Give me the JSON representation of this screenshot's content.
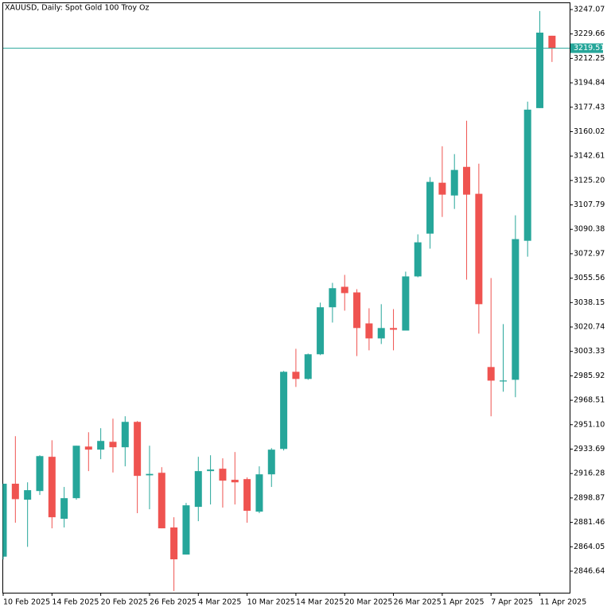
{
  "chart_data": {
    "type": "candlestick",
    "title": "XAUUSD, Daily:  Spot Gold 100 Troy Oz",
    "categories": [
      "10 Feb 2025",
      null,
      null,
      null,
      "14 Feb 2025",
      null,
      null,
      null,
      "20 Feb 2025",
      null,
      null,
      null,
      "26 Feb 2025",
      null,
      null,
      null,
      "4 Mar 2025",
      null,
      null,
      null,
      "10 Mar 2025",
      null,
      null,
      null,
      "14 Mar 2025",
      null,
      null,
      null,
      "20 Mar 2025",
      null,
      null,
      null,
      "26 Mar 2025",
      null,
      null,
      null,
      "1 Apr 2025",
      null,
      null,
      null,
      "7 Apr 2025",
      null,
      null,
      null,
      "11 Apr 2025",
      null
    ],
    "open": [
      2857,
      2909,
      2897.6,
      2903.8,
      2928.2,
      2884,
      2898.7,
      2935.5,
      2933.3,
      2938.9,
      2935,
      2953.1,
      2915,
      2916.8,
      2877.8,
      2858.5,
      2892.5,
      2918,
      2919.7,
      2911.8,
      2912.3,
      2889.1,
      2915.7,
      2933.8,
      2988.8,
      2983.7,
      3001.3,
      3034.8,
      3049.4,
      3045.4,
      3023.3,
      3012.6,
      3020,
      3018.2,
      3056.8,
      3087.3,
      3123.6,
      3114.5,
      3134.9,
      3115.7,
      2992.2,
      2981.9,
      2983.1,
      3082.2,
      3176.8,
      3228.4
    ],
    "high": [
      2909,
      2942.9,
      2910,
      2929.3,
      2940,
      2906.7,
      2936.1,
      2945.7,
      2948.6,
      2955.4,
      2957.1,
      2953.7,
      2936.1,
      2920.8,
      2885.1,
      2895.3,
      2928.2,
      2929.3,
      2927.1,
      2931.6,
      2913.5,
      2921.4,
      2934.4,
      2989.4,
      3005.2,
      3001.8,
      3038.1,
      3052.2,
      3057.9,
      3047.7,
      3034.1,
      3037,
      3033.5,
      3060.2,
      3086.8,
      3127.6,
      3149.6,
      3144,
      3167.8,
      3137.2,
      3055.6,
      3022.8,
      3100.4,
      3181.4,
      3246,
      3228.4
    ],
    "low": [
      2855,
      2881.2,
      2864,
      2901,
      2877.2,
      2877.8,
      2897.6,
      2918,
      2926.5,
      2917,
      2921.4,
      2888,
      2890.8,
      2877.2,
      2832.5,
      2858.5,
      2882.3,
      2894.2,
      2892,
      2894.2,
      2881.2,
      2888,
      2906.7,
      2932.7,
      2978,
      2983.1,
      3000.7,
      3023.9,
      3032.4,
      3000,
      3004.1,
      3008.6,
      3004.1,
      3018.2,
      3056.2,
      3076.6,
      3099.2,
      3104.9,
      3054.5,
      3016,
      2957.1,
      2974.6,
      2970.7,
      3070.9,
      3176.8,
      3209.7
    ],
    "close": [
      2909,
      2898,
      2904.4,
      2928.7,
      2885.1,
      2898.7,
      2936.1,
      2933.3,
      2939.5,
      2935,
      2953.1,
      2914.6,
      2916,
      2877.2,
      2855.1,
      2893.6,
      2918,
      2919.1,
      2911.2,
      2910,
      2889.7,
      2915.7,
      2933.3,
      2988.8,
      2983.7,
      3001.3,
      3034.8,
      3048.4,
      3044.9,
      3020,
      3012.6,
      3020,
      3018.8,
      3056.8,
      3081.1,
      3124.2,
      3115.1,
      3132.7,
      3115.1,
      3037,
      2982.5,
      2982.6,
      3083.4,
      3175.7,
      3230.6,
      3219.51
    ],
    "up_color": "#26a69a",
    "down_color": "#ef5350",
    "last_price": 3219.51,
    "last_price_color": "#26a69a",
    "ylim": [
      2831.3,
      3251.6
    ],
    "yticks": [
      3247.07,
      3229.66,
      3212.25,
      3194.84,
      3177.43,
      3160.02,
      3142.61,
      {
        "value": 3125.2,
        "label": "3125.20"
      },
      3107.79,
      3090.38,
      3072.97,
      3055.56,
      3038.15,
      3020.74,
      3003.33,
      2985.92,
      2968.51,
      {
        "value": 2951.1,
        "label": "2951.10"
      },
      2933.69,
      2916.28,
      2898.87,
      2881.46,
      2864.05,
      2846.64
    ]
  }
}
